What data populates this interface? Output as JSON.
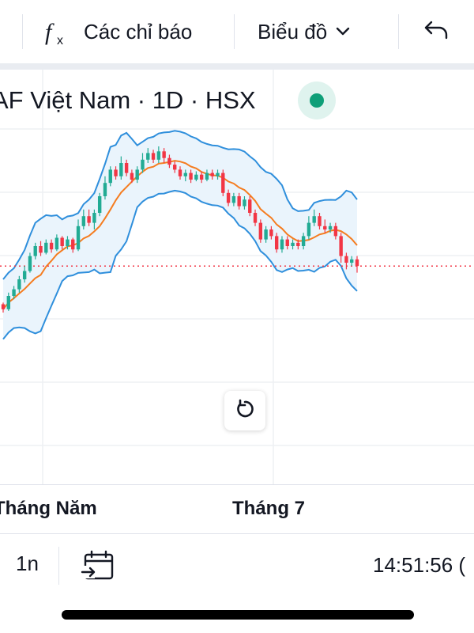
{
  "toolbar": {
    "indicators_label": "Các chỉ báo",
    "chart_type_label": "Biểu đồ",
    "undo_icon": "undo-arrow-icon"
  },
  "legend": {
    "title": "AF Việt Nam · 1D · HSX",
    "status": "market-open"
  },
  "time_axis": {
    "labels": [
      "Tháng Năm",
      "Tháng 7"
    ]
  },
  "bottom_bar": {
    "range": "1n",
    "clock": "14:51:56 ("
  },
  "colors": {
    "up": "#22ab94",
    "down": "#f23645",
    "bollinger": "#2f8fdc",
    "basis": "#f57c1f",
    "band_fill": "#eaf4fc",
    "price_line": "#f23645",
    "grid": "#eef0f3"
  },
  "chart_data": {
    "type": "candlestick",
    "title": "AF Việt Nam · 1D · HSX",
    "indicators": [
      "Bollinger Bands"
    ],
    "x_labels": [
      "Tháng Năm",
      "Tháng 7"
    ],
    "grid": true,
    "last_price_line": "dotted",
    "candles_ohlc_relative": [
      [
        0.05,
        0.02,
        0.06,
        0.0
      ],
      [
        0.02,
        0.1,
        0.12,
        0.01
      ],
      [
        0.1,
        0.14,
        0.16,
        0.08
      ],
      [
        0.14,
        0.2,
        0.22,
        0.12
      ],
      [
        0.2,
        0.25,
        0.28,
        0.18
      ],
      [
        0.25,
        0.34,
        0.36,
        0.24
      ],
      [
        0.34,
        0.4,
        0.42,
        0.32
      ],
      [
        0.4,
        0.36,
        0.43,
        0.34
      ],
      [
        0.36,
        0.42,
        0.44,
        0.35
      ],
      [
        0.42,
        0.38,
        0.44,
        0.36
      ],
      [
        0.38,
        0.45,
        0.47,
        0.37
      ],
      [
        0.45,
        0.4,
        0.46,
        0.38
      ],
      [
        0.4,
        0.44,
        0.46,
        0.38
      ],
      [
        0.44,
        0.38,
        0.45,
        0.36
      ],
      [
        0.38,
        0.52,
        0.56,
        0.37
      ],
      [
        0.52,
        0.58,
        0.62,
        0.5
      ],
      [
        0.58,
        0.54,
        0.62,
        0.52
      ],
      [
        0.54,
        0.6,
        0.62,
        0.5
      ],
      [
        0.6,
        0.7,
        0.72,
        0.58
      ],
      [
        0.7,
        0.78,
        0.82,
        0.68
      ],
      [
        0.78,
        0.86,
        0.88,
        0.76
      ],
      [
        0.86,
        0.82,
        0.88,
        0.8
      ],
      [
        0.82,
        0.9,
        0.94,
        0.8
      ],
      [
        0.9,
        0.84,
        0.92,
        0.82
      ],
      [
        0.84,
        0.8,
        0.86,
        0.78
      ],
      [
        0.8,
        0.86,
        0.88,
        0.78
      ],
      [
        0.86,
        0.92,
        0.96,
        0.84
      ],
      [
        0.92,
        0.96,
        0.99,
        0.9
      ],
      [
        0.96,
        0.92,
        0.98,
        0.9
      ],
      [
        0.92,
        0.97,
        1.0,
        0.9
      ],
      [
        0.97,
        0.93,
        0.99,
        0.9
      ],
      [
        0.93,
        0.89,
        0.95,
        0.87
      ],
      [
        0.89,
        0.86,
        0.91,
        0.84
      ],
      [
        0.86,
        0.82,
        0.88,
        0.8
      ],
      [
        0.82,
        0.84,
        0.86,
        0.79
      ],
      [
        0.84,
        0.8,
        0.86,
        0.78
      ],
      [
        0.8,
        0.83,
        0.85,
        0.79
      ],
      [
        0.83,
        0.8,
        0.85,
        0.78
      ],
      [
        0.8,
        0.84,
        0.86,
        0.79
      ],
      [
        0.84,
        0.82,
        0.86,
        0.8
      ],
      [
        0.82,
        0.84,
        0.86,
        0.8
      ],
      [
        0.84,
        0.72,
        0.86,
        0.7
      ],
      [
        0.72,
        0.66,
        0.74,
        0.64
      ],
      [
        0.66,
        0.7,
        0.72,
        0.64
      ],
      [
        0.7,
        0.64,
        0.72,
        0.62
      ],
      [
        0.64,
        0.68,
        0.7,
        0.62
      ],
      [
        0.68,
        0.6,
        0.7,
        0.58
      ],
      [
        0.6,
        0.54,
        0.62,
        0.52
      ],
      [
        0.54,
        0.44,
        0.56,
        0.42
      ],
      [
        0.44,
        0.5,
        0.52,
        0.42
      ],
      [
        0.5,
        0.46,
        0.52,
        0.44
      ],
      [
        0.46,
        0.38,
        0.48,
        0.36
      ],
      [
        0.38,
        0.44,
        0.46,
        0.36
      ],
      [
        0.44,
        0.4,
        0.46,
        0.38
      ],
      [
        0.4,
        0.42,
        0.44,
        0.38
      ],
      [
        0.42,
        0.4,
        0.44,
        0.38
      ],
      [
        0.4,
        0.46,
        0.48,
        0.38
      ],
      [
        0.46,
        0.54,
        0.58,
        0.44
      ],
      [
        0.54,
        0.58,
        0.62,
        0.52
      ],
      [
        0.58,
        0.52,
        0.6,
        0.5
      ],
      [
        0.52,
        0.5,
        0.56,
        0.48
      ],
      [
        0.5,
        0.52,
        0.54,
        0.48
      ],
      [
        0.52,
        0.46,
        0.54,
        0.44
      ],
      [
        0.46,
        0.34,
        0.48,
        0.3
      ],
      [
        0.34,
        0.3,
        0.36,
        0.26
      ],
      [
        0.3,
        0.32,
        0.34,
        0.28
      ],
      [
        0.32,
        0.28,
        0.34,
        0.24
      ]
    ]
  }
}
